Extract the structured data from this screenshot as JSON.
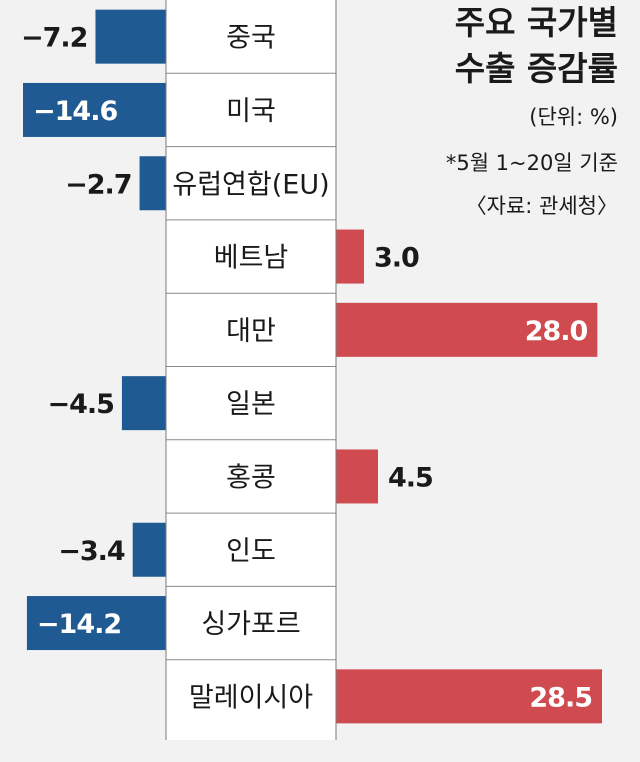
{
  "chart_data": {
    "type": "bar",
    "orientation": "horizontal",
    "title_lines": [
      "주요 국가별",
      "수출 증감률"
    ],
    "unit": "(단위: %)",
    "notes": [
      "*5월 1~20일 기준",
      "〈자료: 관세청〉"
    ],
    "categories": [
      "중국",
      "미국",
      "유럽연합(EU)",
      "베트남",
      "대만",
      "일본",
      "홍콩",
      "인도",
      "싱가포르",
      "말레이시아"
    ],
    "value_labels": [
      "−7.2",
      "−14.6",
      "−2.7",
      "3.0",
      "28.0",
      "−4.5",
      "4.5",
      "−3.4",
      "−14.2",
      "28.5"
    ],
    "values": [
      -7.2,
      -14.6,
      -2.7,
      3.0,
      28.0,
      -4.5,
      4.5,
      -3.4,
      -14.2,
      28.5
    ],
    "colors": {
      "negative": "#1f5a93",
      "positive": "#cf4b50",
      "background": "#f2f2f2",
      "band": "#ffffff"
    }
  }
}
